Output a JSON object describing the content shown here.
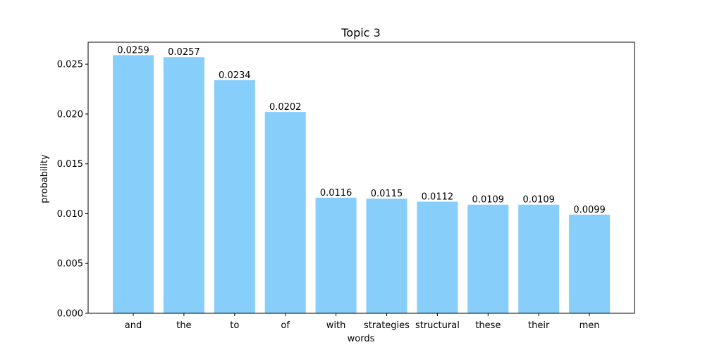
{
  "chart_data": {
    "type": "bar",
    "title": "Topic 3",
    "xlabel": "words",
    "ylabel": "probability",
    "categories": [
      "and",
      "the",
      "to",
      "of",
      "with",
      "strategies",
      "structural",
      "these",
      "their",
      "men"
    ],
    "values": [
      0.0259,
      0.0257,
      0.0234,
      0.0202,
      0.0116,
      0.0115,
      0.0112,
      0.0109,
      0.0109,
      0.0099
    ],
    "value_labels": [
      "0.0259",
      "0.0257",
      "0.0234",
      "0.0202",
      "0.0116",
      "0.0115",
      "0.0112",
      "0.0109",
      "0.0109",
      "0.0099"
    ],
    "yticks": [
      0.0,
      0.005,
      0.01,
      0.015,
      0.02,
      0.025
    ],
    "ytick_labels": [
      "0.000",
      "0.005",
      "0.010",
      "0.015",
      "0.020",
      "0.025"
    ],
    "ylim": [
      0,
      0.0272
    ],
    "bar_color": "#87cefa",
    "grid": false,
    "legend": "none"
  }
}
